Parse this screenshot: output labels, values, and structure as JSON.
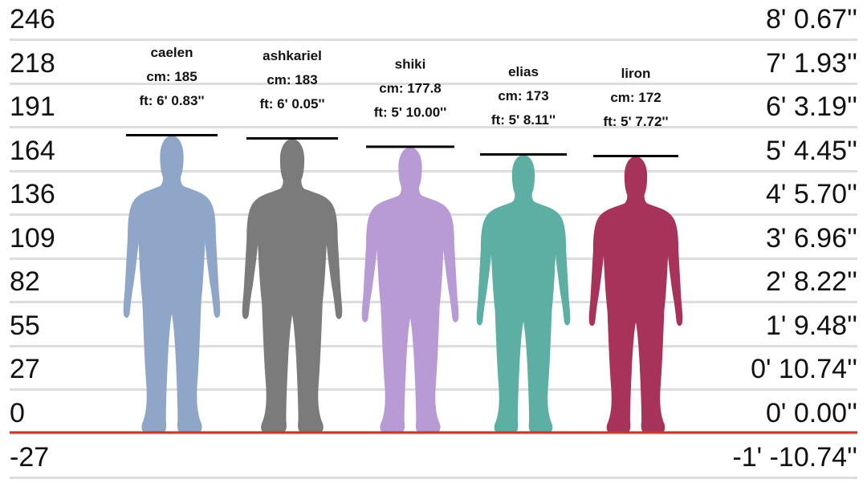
{
  "chart_data": {
    "type": "height-comparison",
    "y_unit_left": "cm",
    "ylim": [
      -27,
      246
    ],
    "left_ticks": [
      "246",
      "218",
      "191",
      "164",
      "136",
      "109",
      "82",
      "55",
      "27",
      "0",
      "-27"
    ],
    "left_tick_values": [
      246,
      218,
      191,
      164,
      136,
      109,
      82,
      55,
      27,
      0,
      -27
    ],
    "right_ticks": [
      "8' 0.67''",
      "7' 1.93''",
      "6' 3.19''",
      "5' 4.45''",
      "4' 5.70''",
      "3' 6.96''",
      "2' 8.22''",
      "1' 9.48''",
      "0' 10.74''",
      "0' 0.00''",
      "-1' -10.74''"
    ],
    "baseline_value": 0,
    "grid": true,
    "people": [
      {
        "name": "caelen",
        "cm_label": "cm: 185",
        "ft_label": "ft: 6' 0.83''",
        "height_cm": 185,
        "color": "#8fa6c8"
      },
      {
        "name": "ashkariel",
        "cm_label": "cm: 183",
        "ft_label": "ft: 6' 0.05''",
        "height_cm": 183,
        "color": "#7b7b7b"
      },
      {
        "name": "shiki",
        "cm_label": "cm: 177.8",
        "ft_label": "ft: 5' 10.00''",
        "height_cm": 177.8,
        "color": "#b89bd4"
      },
      {
        "name": "elias",
        "cm_label": "cm: 173",
        "ft_label": "ft: 5' 8.11''",
        "height_cm": 173,
        "color": "#5eafa3"
      },
      {
        "name": "liron",
        "cm_label": "cm: 172",
        "ft_label": "ft: 5' 7.72''",
        "height_cm": 172,
        "color": "#a8335a"
      }
    ],
    "colors": {
      "grid": "#dddddd",
      "baseline": "#c0392b",
      "marker": "#000000"
    }
  }
}
